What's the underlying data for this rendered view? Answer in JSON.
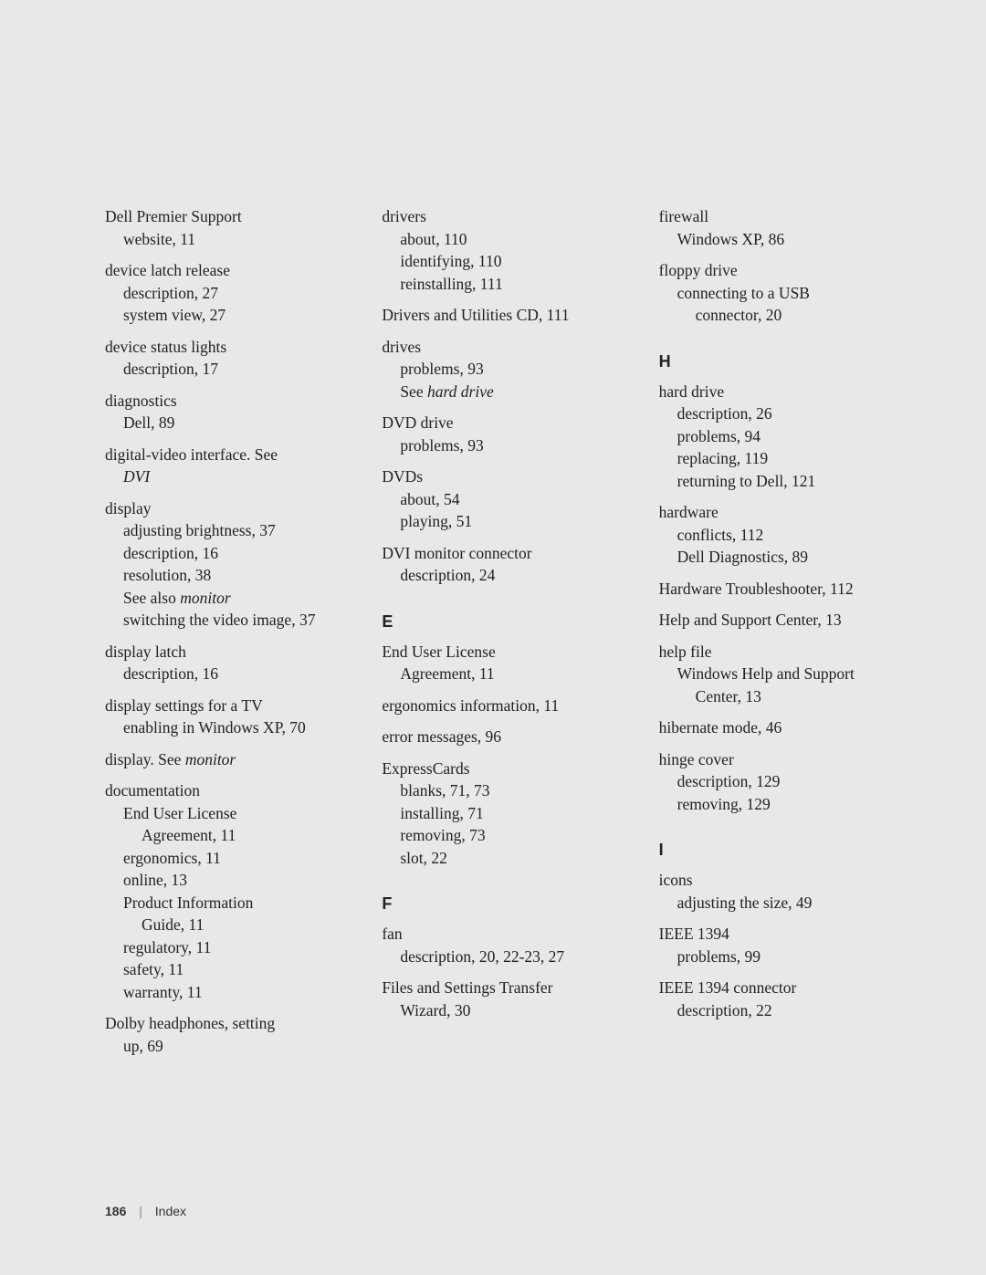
{
  "footer": {
    "page": "186",
    "label": "Index"
  },
  "col1": [
    {
      "type": "entry",
      "lines": [
        {
          "t": "Dell Premier Support",
          "cls": "main"
        },
        {
          "t": "website, 11",
          "cls": "sub"
        }
      ]
    },
    {
      "type": "entry",
      "lines": [
        {
          "t": "device latch release",
          "cls": "main"
        },
        {
          "t": "description, 27",
          "cls": "sub"
        },
        {
          "t": "system view, 27",
          "cls": "sub"
        }
      ]
    },
    {
      "type": "entry",
      "lines": [
        {
          "t": "device status lights",
          "cls": "main"
        },
        {
          "t": "description, 17",
          "cls": "sub"
        }
      ]
    },
    {
      "type": "entry",
      "lines": [
        {
          "t": "diagnostics",
          "cls": "main"
        },
        {
          "t": "Dell, 89",
          "cls": "sub"
        }
      ]
    },
    {
      "type": "entry",
      "lines": [
        {
          "t": "digital-video interface. See",
          "cls": "main"
        },
        {
          "t": "DVI",
          "cls": "sub italic"
        }
      ]
    },
    {
      "type": "entry",
      "lines": [
        {
          "t": "display",
          "cls": "main"
        },
        {
          "t": "adjusting brightness, 37",
          "cls": "sub"
        },
        {
          "t": "description, 16",
          "cls": "sub"
        },
        {
          "t": "resolution, 38",
          "cls": "sub"
        },
        {
          "prefix": "See also ",
          "italic": "monitor",
          "cls": "sub"
        },
        {
          "t": "switching the video image, 37",
          "cls": "sub"
        }
      ]
    },
    {
      "type": "entry",
      "lines": [
        {
          "t": "display latch",
          "cls": "main"
        },
        {
          "t": "description, 16",
          "cls": "sub"
        }
      ]
    },
    {
      "type": "entry",
      "lines": [
        {
          "t": "display settings for a TV",
          "cls": "main"
        },
        {
          "t": "enabling in Windows XP, 70",
          "cls": "sub"
        }
      ]
    },
    {
      "type": "entry",
      "lines": [
        {
          "prefix": "display. See ",
          "italic": "monitor",
          "cls": "main"
        }
      ]
    },
    {
      "type": "entry",
      "lines": [
        {
          "t": "documentation",
          "cls": "main"
        },
        {
          "t": "End User License",
          "cls": "sub"
        },
        {
          "t": "Agreement, 11",
          "cls": "sub-sub"
        },
        {
          "t": "ergonomics, 11",
          "cls": "sub"
        },
        {
          "t": "online, 13",
          "cls": "sub"
        },
        {
          "t": "Product Information",
          "cls": "sub"
        },
        {
          "t": "Guide, 11",
          "cls": "sub-sub"
        },
        {
          "t": "regulatory, 11",
          "cls": "sub"
        },
        {
          "t": "safety, 11",
          "cls": "sub"
        },
        {
          "t": "warranty, 11",
          "cls": "sub"
        }
      ]
    },
    {
      "type": "entry",
      "lines": [
        {
          "t": "Dolby headphones, setting",
          "cls": "main"
        },
        {
          "t": "up, 69",
          "cls": "sub"
        }
      ]
    }
  ],
  "col2": [
    {
      "type": "entry",
      "lines": [
        {
          "t": "drivers",
          "cls": "main"
        },
        {
          "t": "about, 110",
          "cls": "sub"
        },
        {
          "t": "identifying, 110",
          "cls": "sub"
        },
        {
          "t": "reinstalling, 111",
          "cls": "sub"
        }
      ]
    },
    {
      "type": "entry",
      "lines": [
        {
          "t": "Drivers and Utilities CD, 111",
          "cls": "main"
        }
      ]
    },
    {
      "type": "entry",
      "lines": [
        {
          "t": "drives",
          "cls": "main"
        },
        {
          "t": "problems, 93",
          "cls": "sub"
        },
        {
          "prefix": "See ",
          "italic": "hard drive",
          "cls": "sub"
        }
      ]
    },
    {
      "type": "entry",
      "lines": [
        {
          "t": "DVD drive",
          "cls": "main"
        },
        {
          "t": "problems, 93",
          "cls": "sub"
        }
      ]
    },
    {
      "type": "entry",
      "lines": [
        {
          "t": "DVDs",
          "cls": "main"
        },
        {
          "t": "about, 54",
          "cls": "sub"
        },
        {
          "t": "playing, 51",
          "cls": "sub"
        }
      ]
    },
    {
      "type": "entry",
      "lines": [
        {
          "t": "DVI monitor connector",
          "cls": "main"
        },
        {
          "t": "description, 24",
          "cls": "sub"
        }
      ]
    },
    {
      "type": "letter",
      "t": "E"
    },
    {
      "type": "entry",
      "lines": [
        {
          "t": "End User License",
          "cls": "main"
        },
        {
          "t": "Agreement, 11",
          "cls": "sub"
        }
      ]
    },
    {
      "type": "entry",
      "lines": [
        {
          "t": "ergonomics information, 11",
          "cls": "main"
        }
      ]
    },
    {
      "type": "entry",
      "lines": [
        {
          "t": "error messages, 96",
          "cls": "main"
        }
      ]
    },
    {
      "type": "entry",
      "lines": [
        {
          "t": "ExpressCards",
          "cls": "main"
        },
        {
          "t": "blanks, 71, 73",
          "cls": "sub"
        },
        {
          "t": "installing, 71",
          "cls": "sub"
        },
        {
          "t": "removing, 73",
          "cls": "sub"
        },
        {
          "t": "slot, 22",
          "cls": "sub"
        }
      ]
    },
    {
      "type": "letter",
      "t": "F"
    },
    {
      "type": "entry",
      "lines": [
        {
          "t": "fan",
          "cls": "main"
        },
        {
          "t": "description, 20, 22-23, 27",
          "cls": "sub"
        }
      ]
    },
    {
      "type": "entry",
      "lines": [
        {
          "t": "Files and Settings Transfer",
          "cls": "main"
        },
        {
          "t": "Wizard, 30",
          "cls": "sub"
        }
      ]
    }
  ],
  "col3": [
    {
      "type": "entry",
      "lines": [
        {
          "t": "firewall",
          "cls": "main"
        },
        {
          "t": "Windows XP, 86",
          "cls": "sub"
        }
      ]
    },
    {
      "type": "entry",
      "lines": [
        {
          "t": "floppy drive",
          "cls": "main"
        },
        {
          "t": "connecting to a USB",
          "cls": "sub"
        },
        {
          "t": "connector, 20",
          "cls": "sub-sub"
        }
      ]
    },
    {
      "type": "letter",
      "t": "H"
    },
    {
      "type": "entry",
      "lines": [
        {
          "t": "hard drive",
          "cls": "main"
        },
        {
          "t": "description, 26",
          "cls": "sub"
        },
        {
          "t": "problems, 94",
          "cls": "sub"
        },
        {
          "t": "replacing, 119",
          "cls": "sub"
        },
        {
          "t": "returning to Dell, 121",
          "cls": "sub"
        }
      ]
    },
    {
      "type": "entry",
      "lines": [
        {
          "t": "hardware",
          "cls": "main"
        },
        {
          "t": "conflicts, 112",
          "cls": "sub"
        },
        {
          "t": "Dell Diagnostics, 89",
          "cls": "sub"
        }
      ]
    },
    {
      "type": "entry",
      "lines": [
        {
          "t": "Hardware Troubleshooter, 112",
          "cls": "main"
        }
      ]
    },
    {
      "type": "entry",
      "lines": [
        {
          "t": "Help and Support Center, 13",
          "cls": "main"
        }
      ]
    },
    {
      "type": "entry",
      "lines": [
        {
          "t": "help file",
          "cls": "main"
        },
        {
          "t": "Windows Help and Support",
          "cls": "sub"
        },
        {
          "t": "Center, 13",
          "cls": "sub-sub"
        }
      ]
    },
    {
      "type": "entry",
      "lines": [
        {
          "t": "hibernate mode, 46",
          "cls": "main"
        }
      ]
    },
    {
      "type": "entry",
      "lines": [
        {
          "t": "hinge cover",
          "cls": "main"
        },
        {
          "t": "description, 129",
          "cls": "sub"
        },
        {
          "t": "removing, 129",
          "cls": "sub"
        }
      ]
    },
    {
      "type": "letter",
      "t": "I"
    },
    {
      "type": "entry",
      "lines": [
        {
          "t": "icons",
          "cls": "main"
        },
        {
          "t": "adjusting the size, 49",
          "cls": "sub"
        }
      ]
    },
    {
      "type": "entry",
      "lines": [
        {
          "t": "IEEE 1394",
          "cls": "main"
        },
        {
          "t": "problems, 99",
          "cls": "sub"
        }
      ]
    },
    {
      "type": "entry",
      "lines": [
        {
          "t": "IEEE 1394 connector",
          "cls": "main"
        },
        {
          "t": "description, 22",
          "cls": "sub"
        }
      ]
    }
  ]
}
